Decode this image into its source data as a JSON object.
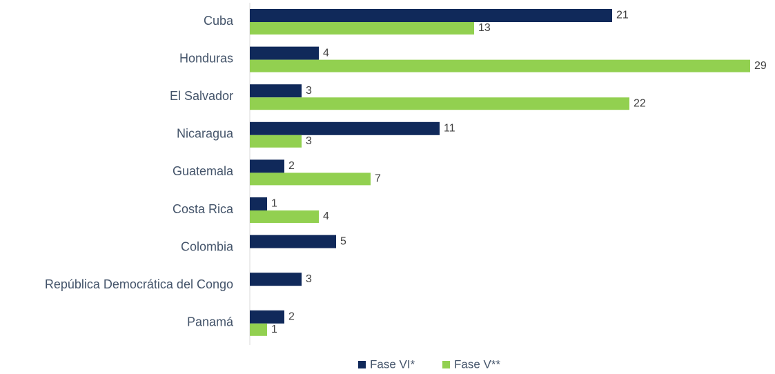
{
  "chart_data": {
    "type": "bar",
    "orientation": "horizontal",
    "categories": [
      "Cuba",
      "Honduras",
      "El Salvador",
      "Nicaragua",
      "Guatemala",
      "Costa Rica",
      "Colombia",
      "República Democrática del Congo",
      "Panamá"
    ],
    "series": [
      {
        "name": "Fase VI*",
        "color": "#10295a",
        "values": [
          21,
          4,
          3,
          11,
          2,
          1,
          5,
          3,
          2
        ]
      },
      {
        "name": "Fase V**",
        "color": "#92d050",
        "values": [
          13,
          29,
          22,
          3,
          7,
          4,
          null,
          null,
          1
        ]
      }
    ],
    "xlim": [
      0,
      30
    ],
    "legend": "bottom"
  }
}
